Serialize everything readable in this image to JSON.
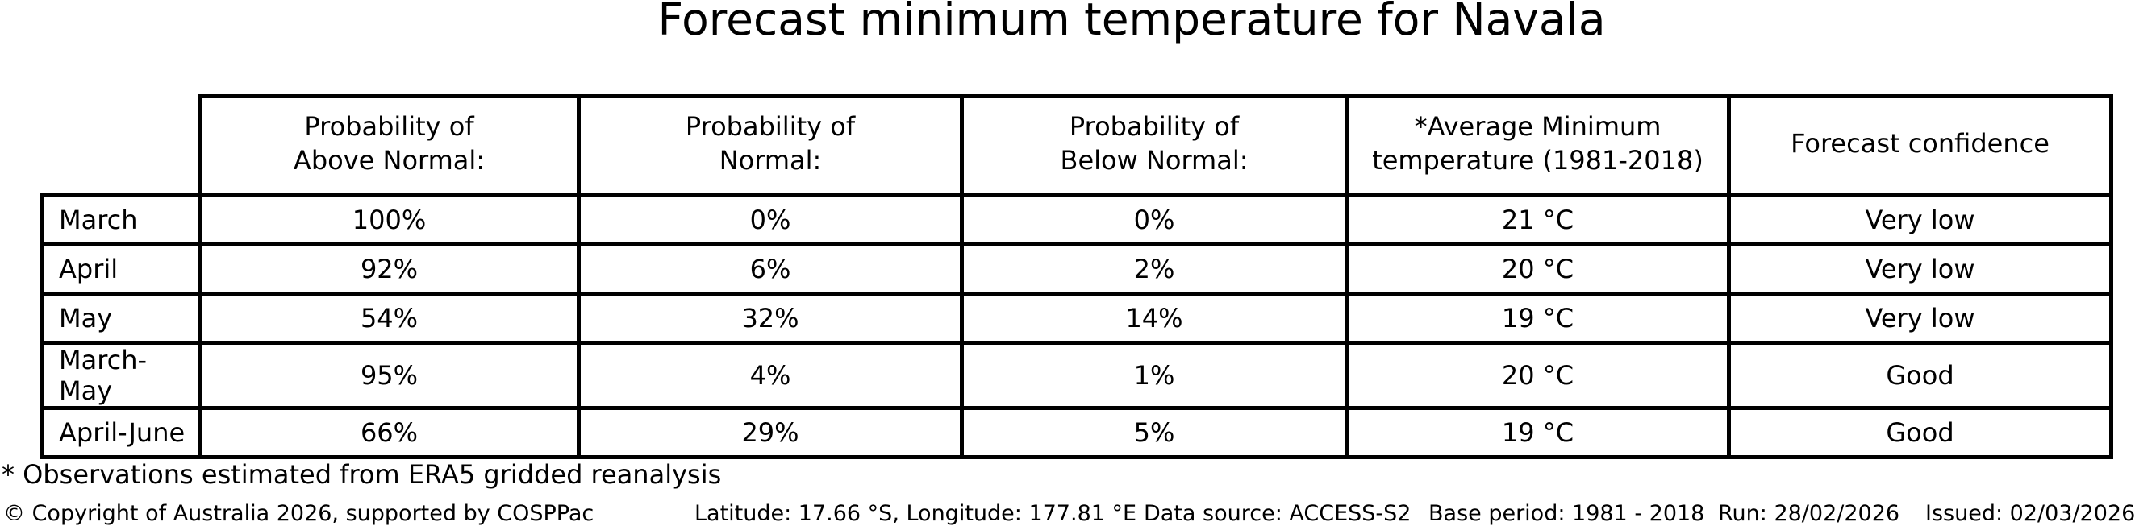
{
  "chart_data": {
    "type": "table",
    "title": "Forecast minimum temperature for Navala",
    "columns": [
      "Probability of\nAbove Normal:",
      "Probability of\nNormal:",
      "Probability of\nBelow Normal:",
      "*Average Minimum\ntemperature (1981-2018)",
      "Forecast confidence"
    ],
    "rows": [
      {
        "label": "March",
        "cells": [
          "100%",
          "0%",
          "0%",
          "21 °C",
          "Very low"
        ]
      },
      {
        "label": "April",
        "cells": [
          "92%",
          "6%",
          "2%",
          "20 °C",
          "Very low"
        ]
      },
      {
        "label": "May",
        "cells": [
          "54%",
          "32%",
          "14%",
          "19 °C",
          "Very low"
        ]
      },
      {
        "label": "March-May",
        "cells": [
          "95%",
          "4%",
          "1%",
          "20 °C",
          "Good"
        ]
      },
      {
        "label": "April-June",
        "cells": [
          "66%",
          "29%",
          "5%",
          "19 °C",
          "Good"
        ]
      }
    ],
    "layout": {
      "grid": false,
      "border_color": "#000000",
      "background": "#ffffff"
    }
  },
  "footnote": "* Observations estimated from ERA5 gridded reanalysis",
  "footer": {
    "copyright": "© Copyright of Australia 2026, supported by COSPPac",
    "location": "Latitude: 17.66 °S, Longitude: 177.81 °E",
    "data_source": "Data source: ACCESS-S2",
    "base_period": "Base period: 1981 - 2018",
    "run": "Run: 28/02/2026",
    "issued": "Issued: 02/03/2026"
  },
  "colors": {
    "text": "#000000",
    "background": "#ffffff",
    "table_border": "#000000"
  }
}
